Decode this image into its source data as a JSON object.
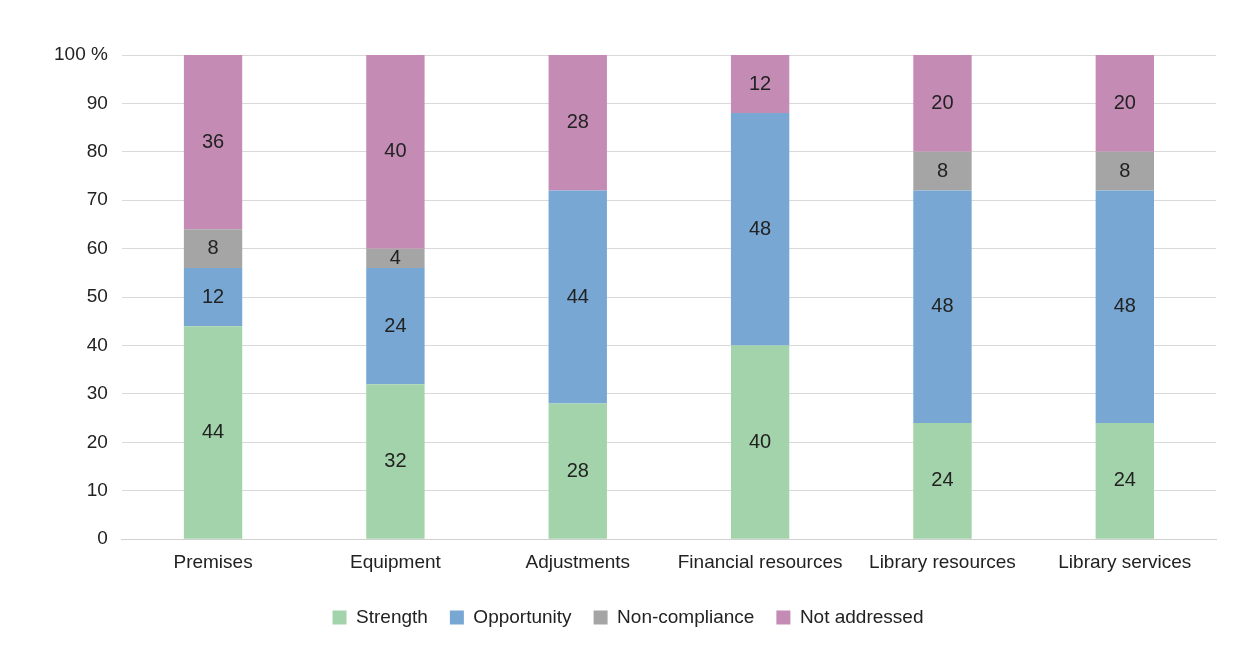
{
  "chart_data": {
    "type": "bar",
    "stacked": true,
    "categories": [
      "Premises",
      "Equipment",
      "Adjustments",
      "Financial resources",
      "Library resources",
      "Library services"
    ],
    "series": [
      {
        "name": "Strength",
        "color": "#a3d3aa",
        "values": [
          44,
          32,
          28,
          40,
          24,
          24
        ],
        "value_labels": [
          "44",
          "32",
          "28",
          "40",
          "24",
          "24"
        ]
      },
      {
        "name": "Opportunity",
        "color": "#77a7d2",
        "values": [
          12,
          24,
          44,
          48,
          48,
          48
        ],
        "value_labels": [
          "12",
          "24",
          "44",
          "48",
          "48",
          "48"
        ]
      },
      {
        "name": "Non-compliance",
        "color": "#a5a5a5",
        "values": [
          8,
          4,
          0,
          0,
          8,
          8
        ],
        "value_labels": [
          "8",
          "4",
          null,
          null,
          "8",
          "8"
        ]
      },
      {
        "name": "Not addressed",
        "color": "#c48bb5",
        "values": [
          36,
          40,
          28,
          12,
          20,
          20
        ],
        "value_labels": [
          "36",
          "40",
          "28",
          "12",
          "20",
          "20"
        ]
      }
    ],
    "ylim": [
      0,
      100
    ],
    "yticks": [
      0,
      10,
      20,
      30,
      40,
      50,
      60,
      70,
      80,
      90,
      {
        "value": 100,
        "label": "100 %"
      }
    ],
    "grid": "y",
    "legend": "bottom"
  }
}
